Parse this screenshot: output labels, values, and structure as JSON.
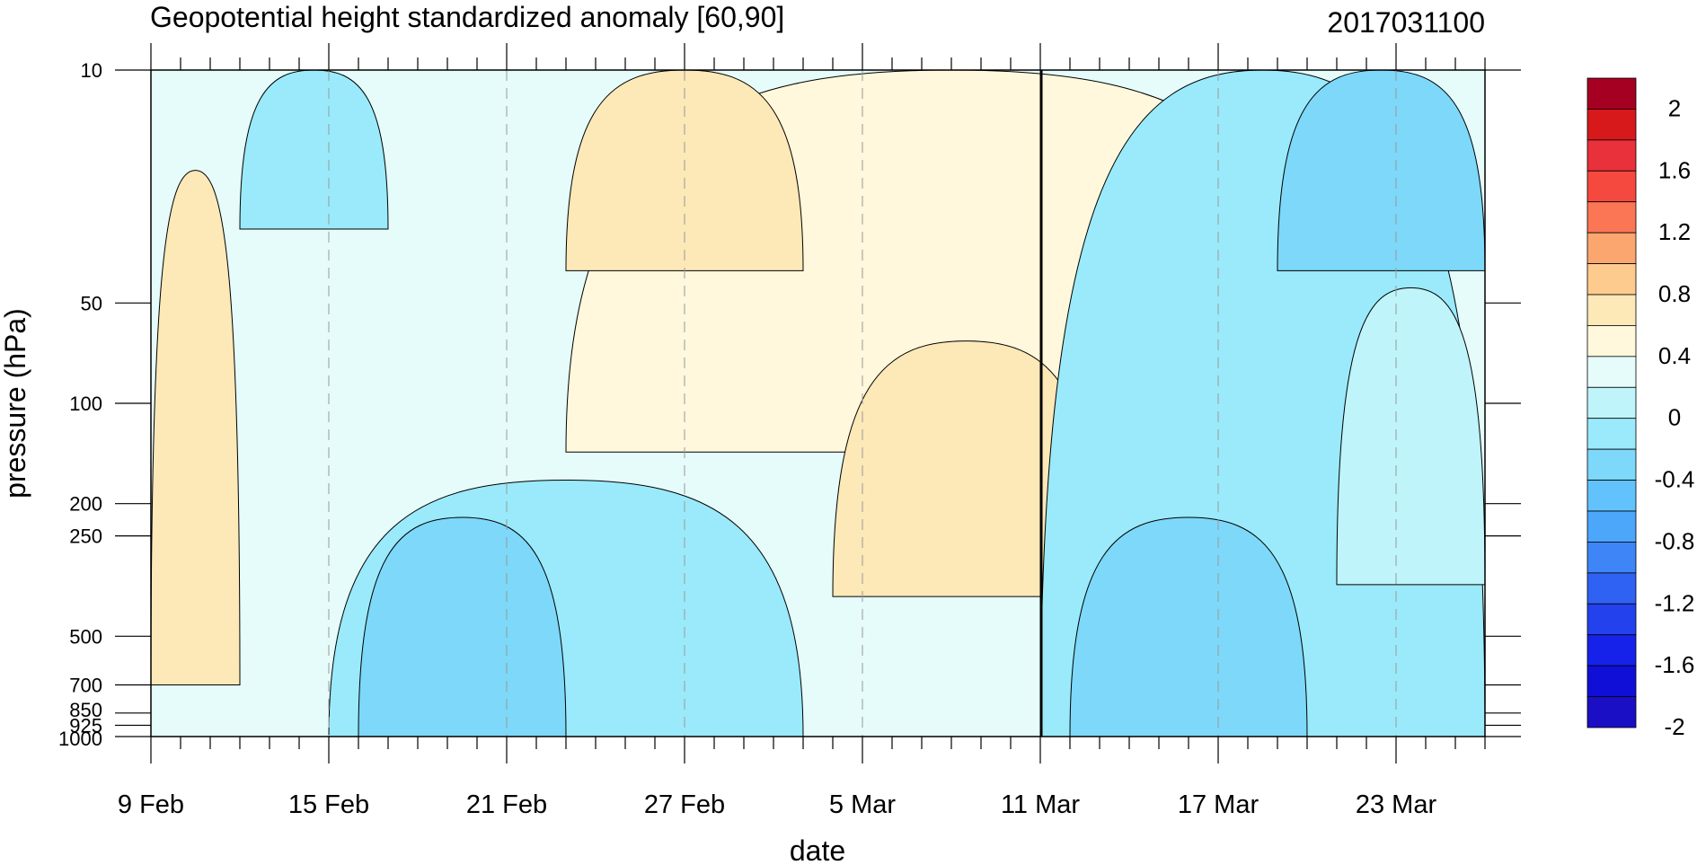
{
  "chart_data": {
    "type": "heatmap",
    "title": "Geopotential height standardized anomaly [60,90]",
    "subtitle": "2017031100",
    "xlabel": "date",
    "ylabel": "pressure (hPa)",
    "x_tick_labels": [
      "9 Feb",
      "15 Feb",
      "21 Feb",
      "27 Feb",
      "5 Mar",
      "11 Mar",
      "17 Mar",
      "23 Mar"
    ],
    "x_range_days": [
      0,
      45
    ],
    "y_tick_labels": [
      "10",
      "50",
      "100",
      "200",
      "250",
      "500",
      "700",
      "850",
      "925",
      "1000"
    ],
    "y_range": [
      10,
      1000
    ],
    "y_scale": "log",
    "reference_line_label": "11 Mar",
    "grid": "dashed vertical lines at labeled dates",
    "colorbar": {
      "labels": [
        "2",
        "1.6",
        "1.2",
        "0.8",
        "0.4",
        "0",
        "-0.4",
        "-0.8",
        "-1.2",
        "-1.6",
        "-2"
      ],
      "levels": [
        2,
        1.8,
        1.6,
        1.4,
        1.2,
        1.0,
        0.8,
        0.6,
        0.4,
        0.2,
        0,
        -0.2,
        -0.4,
        -0.6,
        -0.8,
        -1.0,
        -1.2,
        -1.4,
        -1.6,
        -1.8,
        -2
      ],
      "colors": [
        "#a50021",
        "#d7191c",
        "#e8313b",
        "#f5483e",
        "#fb7655",
        "#fca66f",
        "#fdcb8e",
        "#fde8b8",
        "#fff8dc",
        "#e5fcfb",
        "#bff4fb",
        "#9aeafb",
        "#7dd8f9",
        "#62c2fb",
        "#4ca7fb",
        "#3e86f7",
        "#2f61f3",
        "#2342ee",
        "#1622e9",
        "#100fd8",
        "#1a0fc4"
      ]
    },
    "contour_regions": [
      {
        "level": 0.6,
        "from_day": 0,
        "to_day": 3,
        "p_top": 20,
        "p_bottom": 700
      },
      {
        "level": 0.4,
        "from_day": 14,
        "to_day": 40,
        "p_top": 10,
        "p_bottom": 140
      },
      {
        "level": 0.6,
        "from_day": 14,
        "to_day": 22,
        "p_top": 10,
        "p_bottom": 40
      },
      {
        "level": 0.6,
        "from_day": 23,
        "to_day": 32,
        "p_top": 65,
        "p_bottom": 380
      },
      {
        "level": -0.2,
        "from_day": 3,
        "to_day": 8,
        "p_top": 10,
        "p_bottom": 30
      },
      {
        "level": -0.2,
        "from_day": 6,
        "to_day": 22,
        "p_top": 170,
        "p_bottom": 1000
      },
      {
        "level": -0.4,
        "from_day": 7,
        "to_day": 14,
        "p_top": 220,
        "p_bottom": 1000
      },
      {
        "level": -0.2,
        "from_day": 30,
        "to_day": 45,
        "p_top": 10,
        "p_bottom": 1000
      },
      {
        "level": -0.4,
        "from_day": 38,
        "to_day": 45,
        "p_top": 10,
        "p_bottom": 40
      },
      {
        "level": -0.4,
        "from_day": 31,
        "to_day": 39,
        "p_top": 220,
        "p_bottom": 1000
      },
      {
        "level": 0.0,
        "from_day": 40,
        "to_day": 45,
        "p_top": 45,
        "p_bottom": 350
      }
    ]
  }
}
